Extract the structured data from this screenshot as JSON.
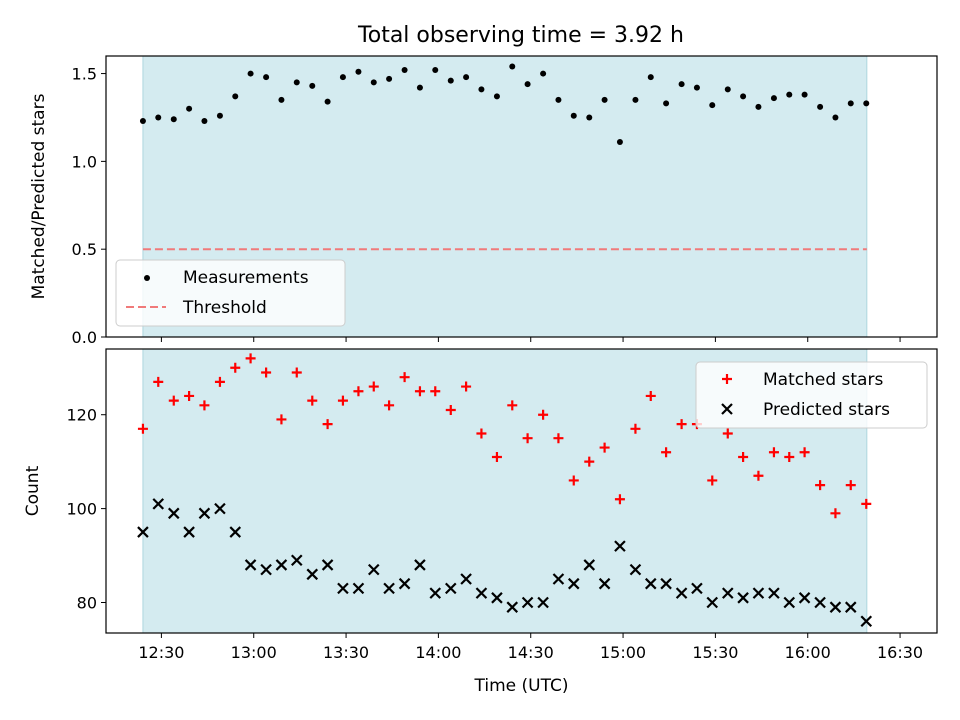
{
  "title": "Total observing time = 3.92 h",
  "colors": {
    "shade": "#d4ebf0",
    "shade_edge": "#aed6df",
    "threshold": "#f07a7a",
    "measurement": "#000000",
    "matched": "#ff0000",
    "predicted": "#000000"
  },
  "chart_data": [
    {
      "type": "scatter",
      "ylabel": "Matched/Predicted stars",
      "xlim": [
        12.2,
        16.7
      ],
      "ylim": [
        0,
        1.6
      ],
      "yticks": [
        0.0,
        0.5,
        1.0,
        1.5
      ],
      "ytick_labels": [
        "0.0",
        "0.5",
        "1.0",
        "1.5"
      ],
      "shaded_span": [
        12.4,
        16.32
      ],
      "threshold": 0.5,
      "legend": {
        "position": "lower-left",
        "entries": [
          "Measurements",
          "Threshold"
        ]
      },
      "series": [
        {
          "name": "Measurements",
          "marker": "dot",
          "x": [
            12.4,
            12.483,
            12.567,
            12.65,
            12.733,
            12.817,
            12.9,
            12.983,
            13.067,
            13.15,
            13.233,
            13.317,
            13.4,
            13.483,
            13.567,
            13.65,
            13.733,
            13.817,
            13.9,
            13.983,
            14.067,
            14.15,
            14.233,
            14.317,
            14.4,
            14.483,
            14.567,
            14.65,
            14.733,
            14.817,
            14.9,
            14.983,
            15.067,
            15.15,
            15.233,
            15.317,
            15.4,
            15.483,
            15.567,
            15.65,
            15.733,
            15.817,
            15.9,
            15.983,
            16.067,
            16.15,
            16.233,
            16.317
          ],
          "y": [
            1.23,
            1.25,
            1.24,
            1.3,
            1.23,
            1.26,
            1.37,
            1.5,
            1.48,
            1.35,
            1.45,
            1.43,
            1.34,
            1.48,
            1.51,
            1.45,
            1.47,
            1.52,
            1.42,
            1.52,
            1.46,
            1.48,
            1.41,
            1.37,
            1.54,
            1.44,
            1.5,
            1.35,
            1.26,
            1.25,
            1.35,
            1.11,
            1.35,
            1.48,
            1.33,
            1.44,
            1.42,
            1.32,
            1.41,
            1.37,
            1.31,
            1.36,
            1.38,
            1.38,
            1.31,
            1.25,
            1.33,
            1.33
          ]
        },
        {
          "name": "Threshold",
          "marker": "dashed-line",
          "x": [
            12.4,
            16.32
          ],
          "y": [
            0.5,
            0.5
          ]
        }
      ]
    },
    {
      "type": "scatter",
      "xlabel": "Time (UTC)",
      "ylabel": "Count",
      "xlim": [
        12.2,
        16.7
      ],
      "ylim": [
        73.5,
        134
      ],
      "xticks": [
        12.5,
        13.0,
        13.5,
        14.0,
        14.5,
        15.0,
        15.5,
        16.0,
        16.5
      ],
      "xtick_labels": [
        "12:30",
        "13:00",
        "13:30",
        "14:00",
        "14:30",
        "15:00",
        "15:30",
        "16:00",
        "16:30"
      ],
      "yticks": [
        80,
        100,
        120
      ],
      "ytick_labels": [
        "80",
        "100",
        "120"
      ],
      "shaded_span": [
        12.4,
        16.32
      ],
      "legend": {
        "position": "top-right",
        "entries": [
          "Matched stars",
          "Predicted stars"
        ]
      },
      "series": [
        {
          "name": "Matched stars",
          "marker": "plus",
          "x": [
            12.4,
            12.483,
            12.567,
            12.65,
            12.733,
            12.817,
            12.9,
            12.983,
            13.067,
            13.15,
            13.233,
            13.317,
            13.4,
            13.483,
            13.567,
            13.65,
            13.733,
            13.817,
            13.9,
            13.983,
            14.067,
            14.15,
            14.233,
            14.317,
            14.4,
            14.483,
            14.567,
            14.65,
            14.733,
            14.817,
            14.9,
            14.983,
            15.067,
            15.15,
            15.233,
            15.317,
            15.4,
            15.483,
            15.567,
            15.65,
            15.733,
            15.817,
            15.9,
            15.983,
            16.067,
            16.15,
            16.233,
            16.317
          ],
          "y": [
            117,
            127,
            123,
            124,
            122,
            127,
            130,
            132,
            129,
            119,
            129,
            123,
            118,
            123,
            125,
            126,
            122,
            128,
            125,
            125,
            121,
            126,
            116,
            111,
            122,
            115,
            120,
            115,
            106,
            110,
            113,
            102,
            117,
            124,
            112,
            118,
            118,
            106,
            116,
            111,
            107,
            112,
            111,
            112,
            105,
            99,
            105,
            101
          ]
        },
        {
          "name": "Predicted stars",
          "marker": "x",
          "x": [
            12.4,
            12.483,
            12.567,
            12.65,
            12.733,
            12.817,
            12.9,
            12.983,
            13.067,
            13.15,
            13.233,
            13.317,
            13.4,
            13.483,
            13.567,
            13.65,
            13.733,
            13.817,
            13.9,
            13.983,
            14.067,
            14.15,
            14.233,
            14.317,
            14.4,
            14.483,
            14.567,
            14.65,
            14.733,
            14.817,
            14.9,
            14.983,
            15.067,
            15.15,
            15.233,
            15.317,
            15.4,
            15.483,
            15.567,
            15.65,
            15.733,
            15.817,
            15.9,
            15.983,
            16.067,
            16.15,
            16.233,
            16.317
          ],
          "y": [
            95,
            101,
            99,
            95,
            99,
            100,
            95,
            88,
            87,
            88,
            89,
            86,
            88,
            83,
            83,
            87,
            83,
            84,
            88,
            82,
            83,
            85,
            82,
            81,
            79,
            80,
            80,
            85,
            84,
            88,
            84,
            92,
            87,
            84,
            84,
            82,
            83,
            80,
            82,
            81,
            82,
            82,
            80,
            81,
            80,
            79,
            79,
            76
          ]
        }
      ]
    }
  ]
}
